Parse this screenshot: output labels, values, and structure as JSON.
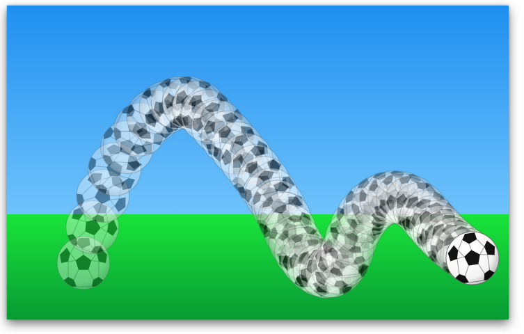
{
  "scene": {
    "subject": "soccer-ball",
    "motion": "bouncing-trail",
    "colors": {
      "sky_top": "#1f8ff0",
      "sky_bottom": "#6fc3fb",
      "grass_top": "#19e53a",
      "grass_bottom": "#079a34",
      "ball_white": "#ffffff",
      "ball_black": "#111111",
      "frame_shadow": "#000000"
    },
    "trail": {
      "ghost_count": 52,
      "ghost_opacity": 0.38
    }
  }
}
